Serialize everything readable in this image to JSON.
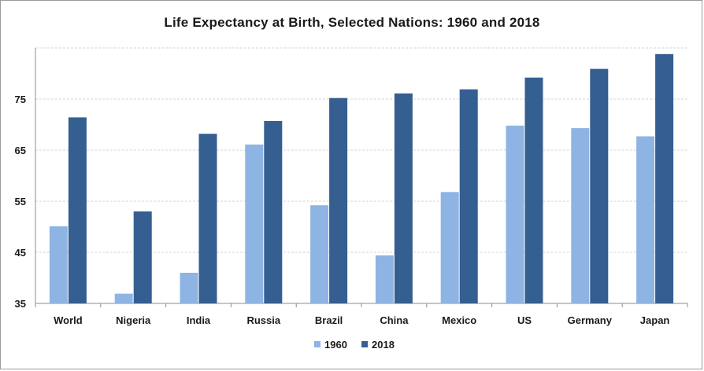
{
  "chart_data": {
    "type": "bar",
    "title": "Life Expectancy at Birth, Selected Nations: 1960 and 2018",
    "xlabel": "",
    "ylabel": "",
    "categories": [
      "World",
      "Nigeria",
      "India",
      "Russia",
      "Brazil",
      "China",
      "Mexico",
      "US",
      "Germany",
      "Japan"
    ],
    "series": [
      {
        "name": "1960",
        "color": "#8eb4e3",
        "values": [
          50.1,
          36.9,
          41.0,
          66.1,
          54.2,
          44.4,
          56.8,
          69.8,
          69.3,
          67.7
        ]
      },
      {
        "name": "2018",
        "color": "#355e91",
        "values": [
          71.4,
          53.0,
          68.2,
          70.7,
          75.2,
          76.1,
          76.9,
          79.2,
          80.9,
          83.8
        ]
      }
    ],
    "ylim": [
      35,
      85
    ],
    "yticks": [
      35,
      45,
      55,
      65,
      75
    ],
    "grid": true,
    "legend_position": "bottom-center"
  }
}
